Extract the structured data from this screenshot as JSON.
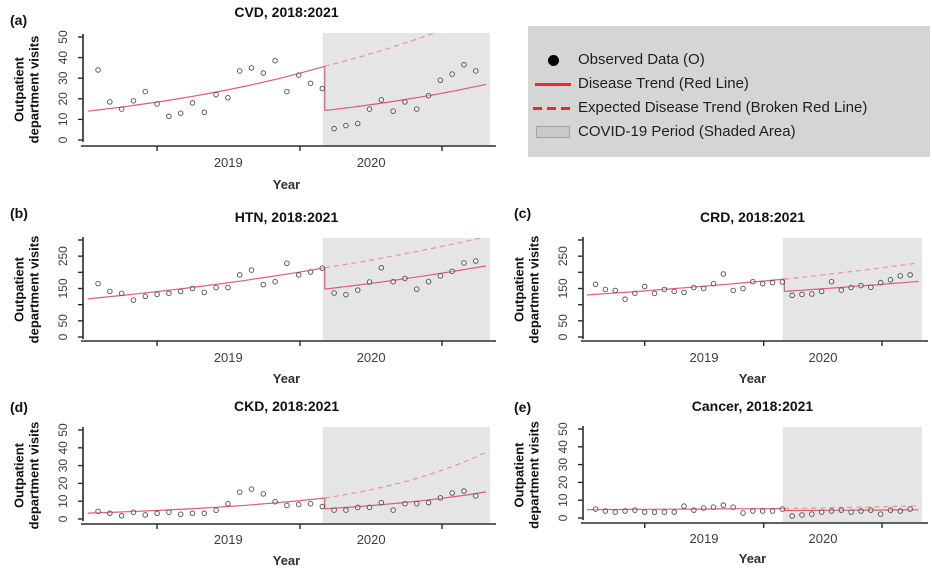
{
  "figure": {
    "xlabel": "Year",
    "ylabel_lines": [
      "Outpatient",
      "department visits"
    ],
    "x_tick_labels": [
      "2019",
      "2020"
    ],
    "colors": {
      "trend_line": "#dd5f70",
      "expected_line": "#eb929c",
      "shaded_area": "#e5e5e5",
      "point_stroke": "#4f4f4f",
      "axis": "#2b2b2b",
      "legend_background": "#d5d5d5",
      "legend_red": "#ee2a2d"
    }
  },
  "legend": {
    "items": [
      {
        "marker": "dot",
        "label": "Observed Data (O)"
      },
      {
        "marker": "solid-line",
        "label": "Disease Trend (Red Line)"
      },
      {
        "marker": "dashed-line",
        "label": "Expected Disease Trend (Broken Red Line)"
      },
      {
        "marker": "shaded-box",
        "label": "COVID-19 Period (Shaded Area)"
      }
    ]
  },
  "chart_data": [
    {
      "panel": "a",
      "type": "scatter",
      "title": "CVD, 2018:2021",
      "xlabel": "Year",
      "x_tick_labels": [
        "2019",
        "2020"
      ],
      "ylim": [
        0,
        50
      ],
      "yticks": [
        0,
        10,
        20,
        30,
        40,
        50
      ],
      "ytick_labels": [
        "0",
        "10",
        "20",
        "30",
        "40",
        "50"
      ],
      "covid_break_frac": 0.589,
      "observed_pre": [
        34,
        18.5,
        15,
        19,
        23.5,
        17.5,
        11.5,
        13,
        18,
        13.5,
        22,
        20.5,
        33.5,
        35,
        32.5,
        38.5,
        23.5,
        31.5,
        27.5,
        25
      ],
      "observed_post": [
        5.5,
        7,
        8,
        15,
        19.5,
        14,
        18.5,
        15,
        21.5,
        29,
        32,
        36.5,
        33.5
      ],
      "trend_pre": [
        14,
        35.8
      ],
      "trend_post": [
        14.3,
        27
      ],
      "expected_trend": [
        35.8,
        62
      ]
    },
    {
      "panel": "b",
      "type": "scatter",
      "title": "HTN, 2018:2021",
      "xlabel": "Year",
      "x_tick_labels": [
        "2019",
        "2020"
      ],
      "ylim": [
        0,
        300
      ],
      "yticks": [
        0,
        50,
        100,
        150,
        200,
        250,
        300
      ],
      "ytick_labels": [
        "0",
        "50",
        "",
        "150",
        "",
        "250",
        ""
      ],
      "covid_break_frac": 0.589,
      "observed_pre": [
        165,
        141,
        135,
        114,
        126,
        132,
        135,
        141,
        150,
        138,
        153,
        153,
        192,
        207,
        162,
        171,
        228,
        192,
        201,
        213
      ],
      "observed_post": [
        136,
        131,
        145,
        170,
        214,
        171,
        181,
        148,
        171,
        189,
        203,
        229,
        235
      ],
      "trend_pre": [
        118,
        214
      ],
      "trend_post": [
        148,
        220
      ],
      "expected_trend": [
        214,
        310
      ]
    },
    {
      "panel": "c",
      "type": "scatter",
      "title": "CRD, 2018:2021",
      "xlabel": "Year",
      "x_tick_labels": [
        "2019",
        "2020"
      ],
      "ylim": [
        0,
        300
      ],
      "yticks": [
        0,
        50,
        100,
        150,
        200,
        250,
        300
      ],
      "ytick_labels": [
        "0",
        "50",
        "",
        "150",
        "",
        "250",
        ""
      ],
      "covid_break_frac": 0.589,
      "observed_pre": [
        163,
        147,
        144,
        117,
        135,
        156,
        135,
        147,
        141,
        138,
        153,
        150,
        165,
        195,
        144,
        150,
        171,
        165,
        168,
        170
      ],
      "observed_post": [
        129,
        132,
        133,
        141,
        171,
        145,
        153,
        159,
        154,
        168,
        177,
        189,
        192
      ],
      "trend_pre": [
        130,
        179
      ],
      "trend_post": [
        141,
        172
      ],
      "expected_trend": [
        179,
        229
      ]
    },
    {
      "panel": "d",
      "type": "scatter",
      "title": "CKD, 2018:2021",
      "xlabel": "Year",
      "x_tick_labels": [
        "2019",
        "2020"
      ],
      "ylim": [
        0,
        50
      ],
      "yticks": [
        0,
        10,
        20,
        30,
        40,
        50
      ],
      "ytick_labels": [
        "0",
        "10",
        "20",
        "30",
        "40",
        "50"
      ],
      "covid_break_frac": 0.589,
      "observed_pre": [
        4.3,
        3.2,
        1.8,
        3.8,
        2.3,
        3.2,
        3.8,
        2.7,
        3.2,
        3.2,
        4.9,
        8.6,
        15.1,
        16.8,
        14.1,
        9.7,
        7.6,
        8.1,
        8.6,
        7
      ],
      "observed_post": [
        5,
        5,
        6.5,
        6.5,
        9.2,
        5,
        8.6,
        8.6,
        9.2,
        11.9,
        14.6,
        15.7,
        13
      ],
      "trend_pre": [
        3.3,
        11.8
      ],
      "trend_post": [
        5.7,
        15.2
      ],
      "expected_trend": [
        11.8,
        37.5
      ]
    },
    {
      "panel": "e",
      "type": "scatter",
      "title": "Cancer, 2018:2021",
      "xlabel": "Year",
      "x_tick_labels": [
        "2019",
        "2020"
      ],
      "ylim": [
        0,
        50
      ],
      "yticks": [
        0,
        10,
        20,
        30,
        40,
        50
      ],
      "ytick_labels": [
        "0",
        "10",
        "20",
        "30",
        "40",
        "50"
      ],
      "covid_break_frac": 0.589,
      "observed_pre": [
        5,
        3.9,
        3.3,
        3.9,
        4.4,
        3.3,
        3.3,
        3.3,
        3.3,
        6.7,
        4.4,
        5.6,
        6.1,
        7.2,
        6.1,
        2.8,
        3.9,
        3.9,
        3.9,
        5
      ],
      "observed_post": [
        1.1,
        1.7,
        2.2,
        3.3,
        3.9,
        4.4,
        3.3,
        3.9,
        4.4,
        2.2,
        4.4,
        3.9,
        5
      ],
      "trend_pre": [
        4.7,
        5.3
      ],
      "trend_post": [
        4.2,
        4.6
      ],
      "expected_trend": [
        5.3,
        6.8
      ]
    }
  ],
  "panel_letters": [
    "(a)",
    "(b)",
    "(c)",
    "(d)",
    "(e)"
  ]
}
